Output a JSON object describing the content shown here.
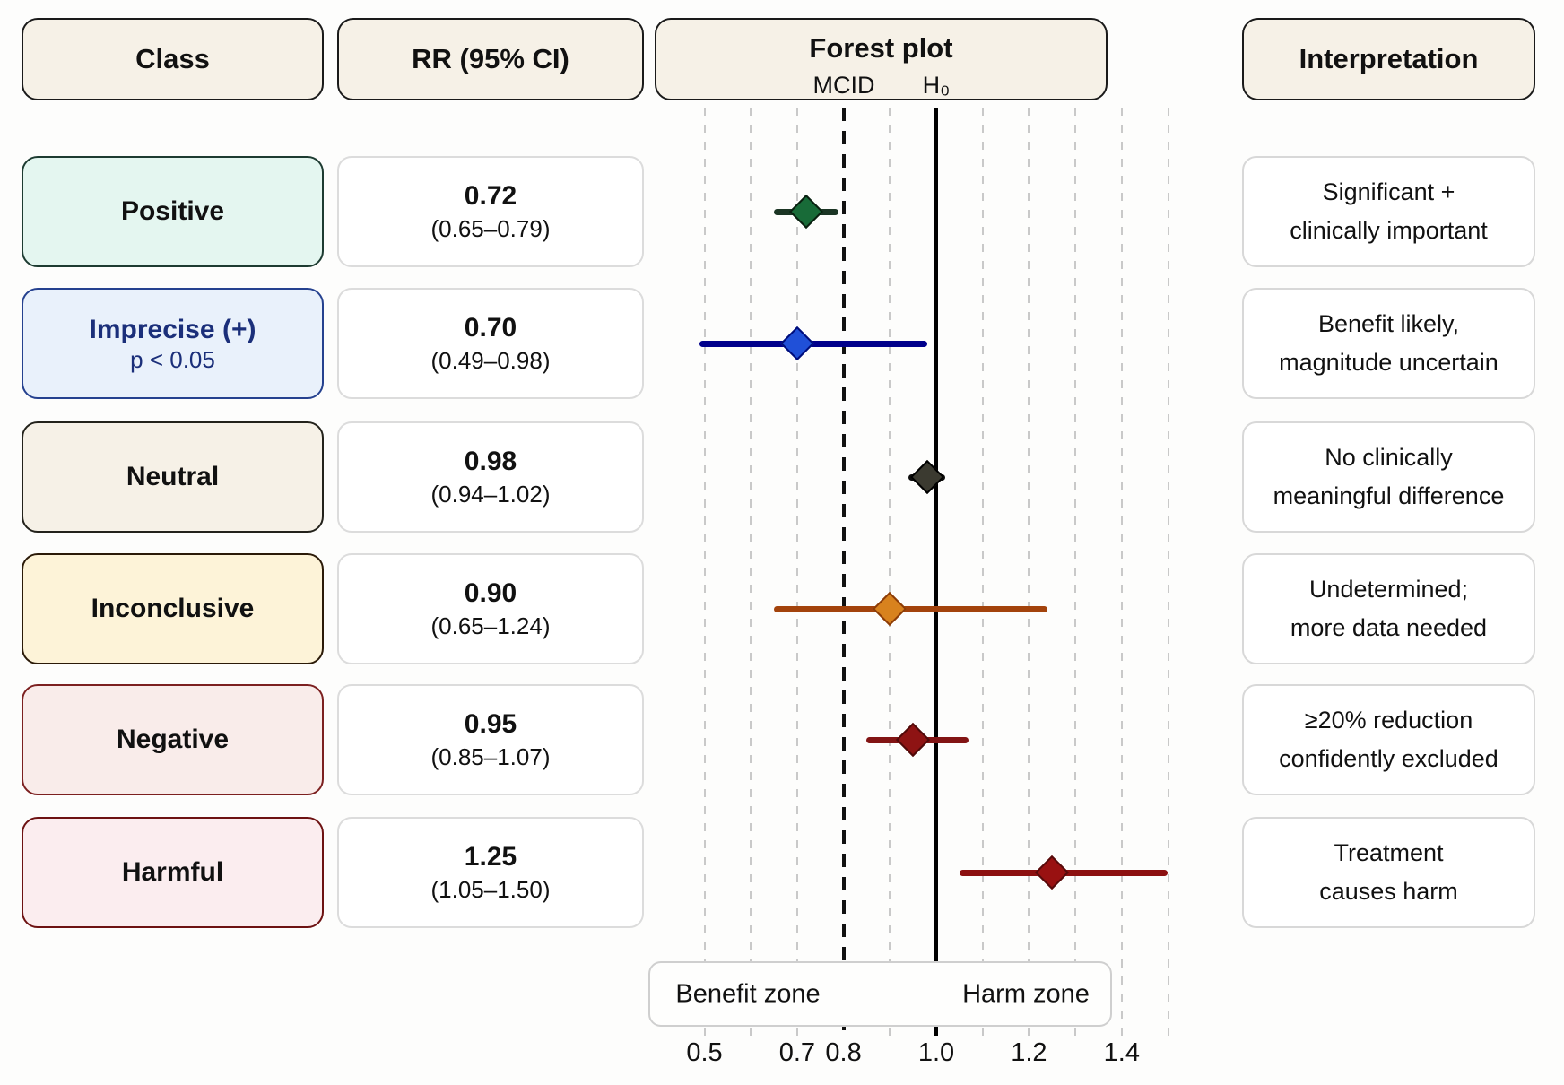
{
  "page": {
    "background": "#fdfdfc"
  },
  "headers": {
    "class": "Class",
    "rr": "RR (95% CI)",
    "forest": "Forest plot",
    "interpretation": "Interpretation",
    "mcid_label": "MCID",
    "h0_label": "H₀"
  },
  "zones": {
    "benefit": "Benefit zone",
    "harm": "Harm zone"
  },
  "rows": [
    {
      "class_label": "Positive",
      "class_sub": "",
      "box_fill": "#e4f6f0",
      "box_border": "#1d3b31",
      "label_color": "#111111",
      "rr_value": "0.72",
      "rr_ci": "(0.65–0.79)",
      "interp_line1": "Significant +",
      "interp_line2": "clinically important"
    },
    {
      "class_label": "Imprecise (+)",
      "class_sub": "p < 0.05",
      "box_fill": "#e9f1fb",
      "box_border": "#25418f",
      "label_color": "#1b2f7a",
      "rr_value": "0.70",
      "rr_ci": "(0.49–0.98)",
      "interp_line1": "Benefit likely,",
      "interp_line2": "magnitude uncertain"
    },
    {
      "class_label": "Neutral",
      "class_sub": "",
      "box_fill": "#f6f1e7",
      "box_border": "#23221b",
      "label_color": "#111111",
      "rr_value": "0.98",
      "rr_ci": "(0.94–1.02)",
      "interp_line1": "No clinically",
      "interp_line2": "meaningful difference"
    },
    {
      "class_label": "Inconclusive",
      "class_sub": "",
      "box_fill": "#fdf3d8",
      "box_border": "#2b1a08",
      "label_color": "#111111",
      "rr_value": "0.90",
      "rr_ci": "(0.65–1.24)",
      "interp_line1": "Undetermined;",
      "interp_line2": "more data needed"
    },
    {
      "class_label": "Negative",
      "class_sub": "",
      "box_fill": "#f9ecea",
      "box_border": "#7c2020",
      "label_color": "#111111",
      "rr_value": "0.95",
      "rr_ci": "(0.85–1.07)",
      "interp_line1": "≥20% reduction",
      "interp_line2": "confidently excluded"
    },
    {
      "class_label": "Harmful",
      "class_sub": "",
      "box_fill": "#fbedef",
      "box_border": "#6d1212",
      "label_color": "#111111",
      "rr_value": "1.25",
      "rr_ci": "(1.05–1.50)",
      "interp_line1": "Treatment",
      "interp_line2": "causes harm"
    }
  ],
  "chart_data": {
    "type": "forest",
    "title": "Forest plot",
    "x_axis": {
      "scale": "linear",
      "range": [
        0.44,
        1.56
      ],
      "ticks": [
        0.5,
        0.7,
        0.8,
        1.0,
        1.2,
        1.4
      ],
      "gridlines": [
        0.5,
        0.6,
        0.7,
        0.9,
        1.1,
        1.2,
        1.3,
        1.4,
        1.5
      ],
      "grid": true
    },
    "reference_lines": {
      "mcid": 0.8,
      "h0": 1.0
    },
    "zone_annotations": [
      "Benefit zone",
      "Harm zone"
    ],
    "series": [
      {
        "name": "Positive",
        "rr": 0.72,
        "ci_low": 0.65,
        "ci_high": 0.79,
        "line_color": "#1b3524",
        "marker_fill": "#186b38",
        "marker_edge": "#0a1f10"
      },
      {
        "name": "Imprecise (+)",
        "rr": 0.7,
        "ci_low": 0.49,
        "ci_high": 0.98,
        "line_color": "#00008b",
        "marker_fill": "#2050d8",
        "marker_edge": "#000d7a"
      },
      {
        "name": "Neutral",
        "rr": 0.98,
        "ci_low": 0.94,
        "ci_high": 1.02,
        "line_color": "#0d0d0d",
        "marker_fill": "#3b3a30",
        "marker_edge": "#000000"
      },
      {
        "name": "Inconclusive",
        "rr": 0.9,
        "ci_low": 0.65,
        "ci_high": 1.24,
        "line_color": "#a3430c",
        "marker_fill": "#d8821e",
        "marker_edge": "#8c3c08"
      },
      {
        "name": "Negative",
        "rr": 0.95,
        "ci_low": 0.85,
        "ci_high": 1.07,
        "line_color": "#821414",
        "marker_fill": "#8e1313",
        "marker_edge": "#4f0a0a"
      },
      {
        "name": "Harmful",
        "rr": 1.25,
        "ci_low": 1.05,
        "ci_high": 1.5,
        "line_color": "#8c1010",
        "marker_fill": "#991111",
        "marker_edge": "#560b0b"
      }
    ]
  }
}
